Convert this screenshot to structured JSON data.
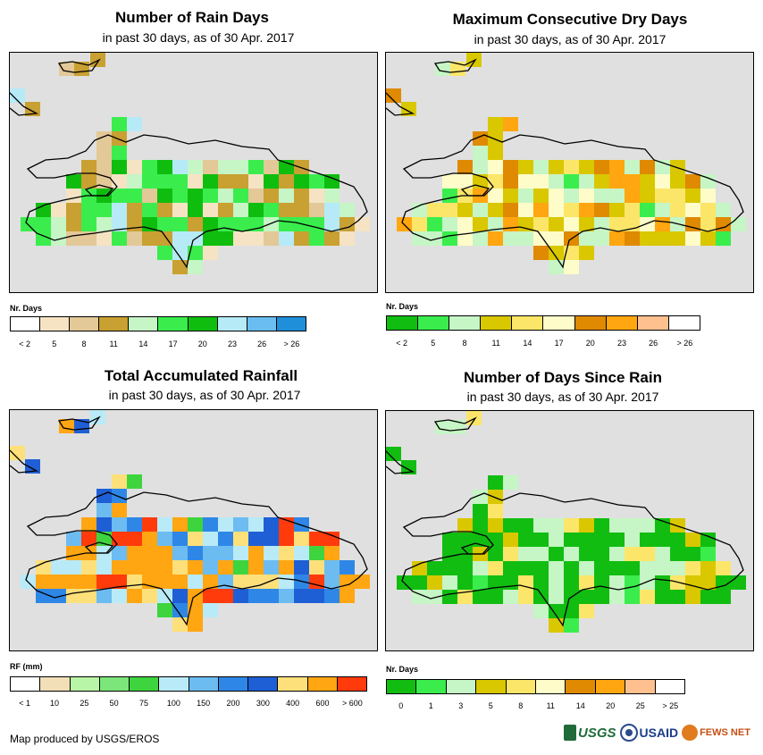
{
  "panels": [
    {
      "title": "Number of Rain Days",
      "subtitle": "in past 30 days, as of 30 Apr. 2017",
      "legend_title": "Nr. Days",
      "legend_colors": [
        "#ffffff",
        "#f5e3c4",
        "#e3c898",
        "#c9a032",
        "#c6f5c6",
        "#3aed4d",
        "#0fbd0f",
        "#b6eaf7",
        "#69bdf1",
        "#1f8fd9"
      ],
      "legend_labels": [
        "< 2",
        "5",
        "8",
        "11",
        "14",
        "17",
        "20",
        "23",
        "26",
        "> 26"
      ]
    },
    {
      "title": "Maximum Consecutive Dry Days",
      "subtitle": "in past 30 days, as of 30 Apr. 2017",
      "legend_title": "Nr. Days",
      "legend_colors": [
        "#11bd11",
        "#3aed4d",
        "#c6f5c6",
        "#d9c700",
        "#fbe66a",
        "#fefcc8",
        "#df8a00",
        "#ffa610",
        "#fdc08e",
        "#ffffff"
      ],
      "legend_labels": [
        "< 2",
        "5",
        "8",
        "11",
        "14",
        "17",
        "20",
        "23",
        "26",
        "> 26"
      ]
    },
    {
      "title": "Total Accumulated Rainfall",
      "subtitle": "in past 30 days, as of 30 Apr. 2017",
      "legend_title": "RF (mm)",
      "legend_colors": [
        "#ffffff",
        "#f2dfb8",
        "#b9f5a6",
        "#7de67a",
        "#3ed43e",
        "#b9eaf7",
        "#6cbcf2",
        "#2e87e6",
        "#1f5fd6",
        "#fde07a",
        "#ffa612",
        "#ff3b0c"
      ],
      "legend_labels": [
        "< 1",
        "10",
        "25",
        "50",
        "75",
        "100",
        "150",
        "200",
        "300",
        "400",
        "600",
        "> 600"
      ]
    },
    {
      "title": "Number of Days Since Rain",
      "subtitle": "in past 30 days, as of 30 Apr. 2017",
      "legend_title": "Nr. Days",
      "legend_colors": [
        "#11bd11",
        "#3aed4d",
        "#c6f5c6",
        "#d9c700",
        "#fbe66a",
        "#fefcc8",
        "#df8a00",
        "#ffa610",
        "#fdc08e",
        "#ffffff"
      ],
      "legend_labels": [
        "0",
        "1",
        "3",
        "5",
        "8",
        "11",
        "14",
        "20",
        "25",
        "> 25"
      ]
    }
  ],
  "footer": {
    "credit": "Map produced by USGS/EROS",
    "logo_usgs": "USGS",
    "logo_usaid": "USAID",
    "logo_fews": "FEWS NET"
  }
}
